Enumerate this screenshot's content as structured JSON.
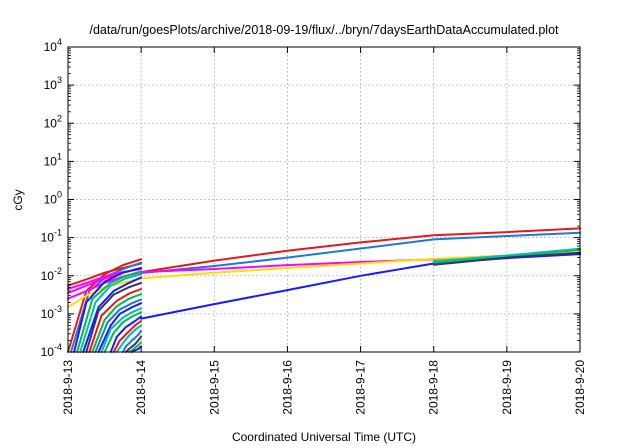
{
  "chart_data": {
    "type": "line",
    "title": "/data/run/goesPlots/archive/2018-09-19/flux/../bryn/7daysEarthDataAccumulated.plot",
    "xlabel": "Coordinated Universal Time (UTC)",
    "ylabel": "cGy",
    "x_scale": "date",
    "y_scale": "log",
    "xlim": [
      "2018-09-13",
      "2018-09-20"
    ],
    "ylim": [
      0.0001,
      10000
    ],
    "grid": true,
    "legend": "none",
    "x_ticks": [
      "2018-9-13",
      "2018-9-14",
      "2018-9-15",
      "2018-9-16",
      "2018-9-17",
      "2018-9-18",
      "2018-9-19",
      "2018-9-20"
    ],
    "y_ticks": [
      {
        "value": 0.0001,
        "base": "10",
        "exp": "-4"
      },
      {
        "value": 0.001,
        "base": "10",
        "exp": "-3"
      },
      {
        "value": 0.01,
        "base": "10",
        "exp": "-2"
      },
      {
        "value": 0.1,
        "base": "10",
        "exp": "-1"
      },
      {
        "value": 1,
        "base": "10",
        "exp": "0"
      },
      {
        "value": 10,
        "base": "10",
        "exp": "1"
      },
      {
        "value": 100,
        "base": "10",
        "exp": "2"
      },
      {
        "value": 1000,
        "base": "10",
        "exp": "3"
      },
      {
        "value": 10000,
        "base": "10",
        "exp": "4"
      }
    ],
    "series": [
      {
        "color": "#e31a1c",
        "x": [
          "2018-09-14",
          "2018-09-15",
          "2018-09-16",
          "2018-09-17",
          "2018-09-18",
          "2018-09-19",
          "2018-09-20"
        ],
        "values": [
          0.0125,
          0.025,
          0.045,
          0.075,
          0.115,
          0.14,
          0.175
        ]
      },
      {
        "color": "#1f78d4",
        "x": [
          "2018-09-14",
          "2018-09-15",
          "2018-09-16",
          "2018-09-17",
          "2018-09-18",
          "2018-09-19",
          "2018-09-20"
        ],
        "values": [
          0.0118,
          0.018,
          0.03,
          0.052,
          0.09,
          0.11,
          0.135
        ]
      },
      {
        "color": "#ff00ff",
        "x": [
          "2018-09-14",
          "2018-09-15",
          "2018-09-16",
          "2018-09-17",
          "2018-09-18",
          "2018-09-19",
          "2018-09-20"
        ],
        "values": [
          0.0125,
          0.015,
          0.019,
          0.023,
          0.027,
          0.033,
          0.04
        ]
      },
      {
        "color": "#ffdd00",
        "x": [
          "2018-09-14",
          "2018-09-15",
          "2018-09-16",
          "2018-09-17",
          "2018-09-18",
          "2018-09-19",
          "2018-09-20"
        ],
        "values": [
          0.0085,
          0.012,
          0.016,
          0.021,
          0.028,
          0.034,
          0.042
        ]
      },
      {
        "color": "#1a1aff",
        "x": [
          "2018-09-14",
          "2018-09-15",
          "2018-09-16",
          "2018-09-17",
          "2018-09-18",
          "2018-09-19",
          "2018-09-20"
        ],
        "values": [
          0.00075,
          0.0018,
          0.0042,
          0.01,
          0.021,
          0.029,
          0.037
        ]
      },
      {
        "color": "#00bb44",
        "x": [
          "2018-09-18",
          "2018-09-19",
          "2018-09-20"
        ],
        "values": [
          0.022,
          0.032,
          0.048
        ]
      },
      {
        "color": "#00bbbb",
        "x": [
          "2018-09-18",
          "2018-09-19",
          "2018-09-20"
        ],
        "values": [
          0.024,
          0.034,
          0.051
        ]
      },
      {
        "color": "#333366",
        "x": [
          "2018-09-18",
          "2018-09-19",
          "2018-09-20"
        ],
        "values": [
          0.0195,
          0.03,
          0.04
        ]
      },
      {
        "color": "#e31a1c",
        "x": [
          "2018-09-13",
          "2018-09-13 06:00",
          "2018-09-13 12:00",
          "2018-09-13 18:00",
          "2018-09-14"
        ],
        "values": [
          0.0001,
          0.004,
          0.011,
          0.019,
          0.027
        ]
      },
      {
        "color": "#e31a1c",
        "x": [
          "2018-09-13",
          "2018-09-13 06:00",
          "2018-09-13 12:00",
          "2018-09-13 18:00",
          "2018-09-14"
        ],
        "values": [
          0.0055,
          0.008,
          0.012,
          0.016,
          0.021
        ]
      },
      {
        "color": "#1f78d4",
        "x": [
          "2018-09-13 01:00",
          "2018-09-13 07:00",
          "2018-09-13 13:00",
          "2018-09-13 19:00",
          "2018-09-14"
        ],
        "values": [
          0.0001,
          0.004,
          0.01,
          0.016,
          0.022
        ]
      },
      {
        "color": "#ff00ff",
        "x": [
          "2018-09-13",
          "2018-09-13 06:00",
          "2018-09-13 12:00",
          "2018-09-13 18:00",
          "2018-09-14"
        ],
        "values": [
          0.0035,
          0.0055,
          0.0085,
          0.012,
          0.016
        ]
      },
      {
        "color": "#ff00ff",
        "x": [
          "2018-09-13",
          "2018-09-13 06:00",
          "2018-09-13 12:00",
          "2018-09-13 18:00",
          "2018-09-14"
        ],
        "values": [
          0.0045,
          0.0065,
          0.0095,
          0.0125,
          0.015
        ]
      },
      {
        "color": "#ff00ff",
        "x": [
          "2018-09-13",
          "2018-09-13 06:00",
          "2018-09-13 12:00",
          "2018-09-13 18:00",
          "2018-09-14"
        ],
        "values": [
          0.0025,
          0.004,
          0.0065,
          0.0095,
          0.0125
        ]
      },
      {
        "color": "#ffdd00",
        "x": [
          "2018-09-13",
          "2018-09-13 06:00",
          "2018-09-13 12:00",
          "2018-09-13 18:00",
          "2018-09-14"
        ],
        "values": [
          0.0015,
          0.003,
          0.005,
          0.0065,
          0.0085
        ]
      },
      {
        "color": "#1a1aff",
        "x": [
          "2018-09-13 02:00",
          "2018-09-13 06:00",
          "2018-09-13 12:00",
          "2018-09-13 18:00",
          "2018-09-14"
        ],
        "values": [
          0.0001,
          0.002,
          0.007,
          0.012,
          0.016
        ]
      },
      {
        "color": "#00bb44",
        "x": [
          "2018-09-13 03:00",
          "2018-09-13 08:00",
          "2018-09-13 14:00",
          "2018-09-13 19:00",
          "2018-09-14"
        ],
        "values": [
          0.0001,
          0.0025,
          0.0065,
          0.01,
          0.013
        ]
      },
      {
        "color": "#00bbbb",
        "x": [
          "2018-09-13 04:00",
          "2018-09-13 09:00",
          "2018-09-13 14:00",
          "2018-09-13 19:00",
          "2018-09-14"
        ],
        "values": [
          0.0001,
          0.002,
          0.0055,
          0.0085,
          0.011
        ]
      },
      {
        "color": "#1a1aff",
        "x": [
          "2018-09-13 05:00",
          "2018-09-13 10:00",
          "2018-09-13 15:00",
          "2018-09-13 20:00",
          "2018-09-14"
        ],
        "values": [
          0.0001,
          0.0015,
          0.004,
          0.0065,
          0.009
        ]
      },
      {
        "color": "#333366",
        "x": [
          "2018-09-13 06:00",
          "2018-09-13 10:00",
          "2018-09-13 15:00",
          "2018-09-13 20:00",
          "2018-09-14"
        ],
        "values": [
          0.0001,
          0.0012,
          0.0032,
          0.005,
          0.0065
        ]
      },
      {
        "color": "#e31a1c",
        "x": [
          "2018-09-13 07:00",
          "2018-09-13 11:00",
          "2018-09-13 16:00",
          "2018-09-13 20:00",
          "2018-09-14"
        ],
        "values": [
          0.0001,
          0.0009,
          0.0022,
          0.0034,
          0.0045
        ]
      },
      {
        "color": "#00bb44",
        "x": [
          "2018-09-13 08:00",
          "2018-09-13 12:00",
          "2018-09-13 16:00",
          "2018-09-13 20:00",
          "2018-09-14"
        ],
        "values": [
          0.0001,
          0.0007,
          0.0016,
          0.0025,
          0.0033
        ]
      },
      {
        "color": "#1f78d4",
        "x": [
          "2018-09-13 09:00",
          "2018-09-13 13:00",
          "2018-09-13 17:00",
          "2018-09-13 21:00",
          "2018-09-14"
        ],
        "values": [
          0.0001,
          0.0006,
          0.0013,
          0.0019,
          0.0024
        ]
      },
      {
        "color": "#1a1aff",
        "x": [
          "2018-09-13 10:00",
          "2018-09-13 14:00",
          "2018-09-13 17:00",
          "2018-09-13 21:00",
          "2018-09-14"
        ],
        "values": [
          0.0001,
          0.0005,
          0.001,
          0.0015,
          0.0019
        ]
      },
      {
        "color": "#00bbbb",
        "x": [
          "2018-09-13 11:00",
          "2018-09-13 14:00",
          "2018-09-13 18:00",
          "2018-09-13 21:00",
          "2018-09-14"
        ],
        "values": [
          0.0001,
          0.0004,
          0.0008,
          0.0011,
          0.0014
        ]
      },
      {
        "color": "#00bb44",
        "x": [
          "2018-09-13 12:00",
          "2018-09-13 15:00",
          "2018-09-13 18:00",
          "2018-09-13 21:00",
          "2018-09-14"
        ],
        "values": [
          0.0001,
          0.00032,
          0.0006,
          0.00085,
          0.0011
        ]
      },
      {
        "color": "#1a1aff",
        "x": [
          "2018-09-13 14:00",
          "2018-09-13 16:00",
          "2018-09-13 19:00",
          "2018-09-13 22:00",
          "2018-09-14"
        ],
        "values": [
          0.0001,
          0.00025,
          0.00045,
          0.00065,
          0.00085
        ]
      },
      {
        "color": "#e31a1c",
        "x": [
          "2018-09-13 15:00",
          "2018-09-13 17:00",
          "2018-09-13 20:00",
          "2018-09-13 22:00",
          "2018-09-14"
        ],
        "values": [
          0.0001,
          0.0002,
          0.00035,
          0.0005,
          0.00065
        ]
      },
      {
        "color": "#00bbbb",
        "x": [
          "2018-09-13 16:00",
          "2018-09-13 18:00",
          "2018-09-13 20:00",
          "2018-09-13 22:00",
          "2018-09-14"
        ],
        "values": [
          0.0001,
          0.00017,
          0.00027,
          0.00038,
          0.0005
        ]
      },
      {
        "color": "#1f78d4",
        "x": [
          "2018-09-13 18:00",
          "2018-09-13 19:00",
          "2018-09-13 21:00",
          "2018-09-13 23:00",
          "2018-09-14"
        ],
        "values": [
          0.0001,
          0.00014,
          0.0002,
          0.00028,
          0.00036
        ]
      },
      {
        "color": "#333366",
        "x": [
          "2018-09-13 19:00",
          "2018-09-13 20:00",
          "2018-09-13 22:00",
          "2018-09-13 23:00",
          "2018-09-14"
        ],
        "values": [
          0.0001,
          0.00012,
          0.00016,
          0.0002,
          0.00025
        ]
      },
      {
        "color": "#00bb44",
        "x": [
          "2018-09-13 20:00",
          "2018-09-13 21:00",
          "2018-09-13 22:00",
          "2018-09-13 23:00",
          "2018-09-14"
        ],
        "values": [
          0.0001,
          0.00011,
          0.00013,
          0.00015,
          0.00018
        ]
      },
      {
        "color": "#1a1aff",
        "x": [
          "2018-09-13 21:00",
          "2018-09-13 22:00",
          "2018-09-13 23:00",
          "2018-09-14"
        ],
        "values": [
          0.0001,
          0.00011,
          0.00012,
          0.00014
        ]
      }
    ]
  }
}
